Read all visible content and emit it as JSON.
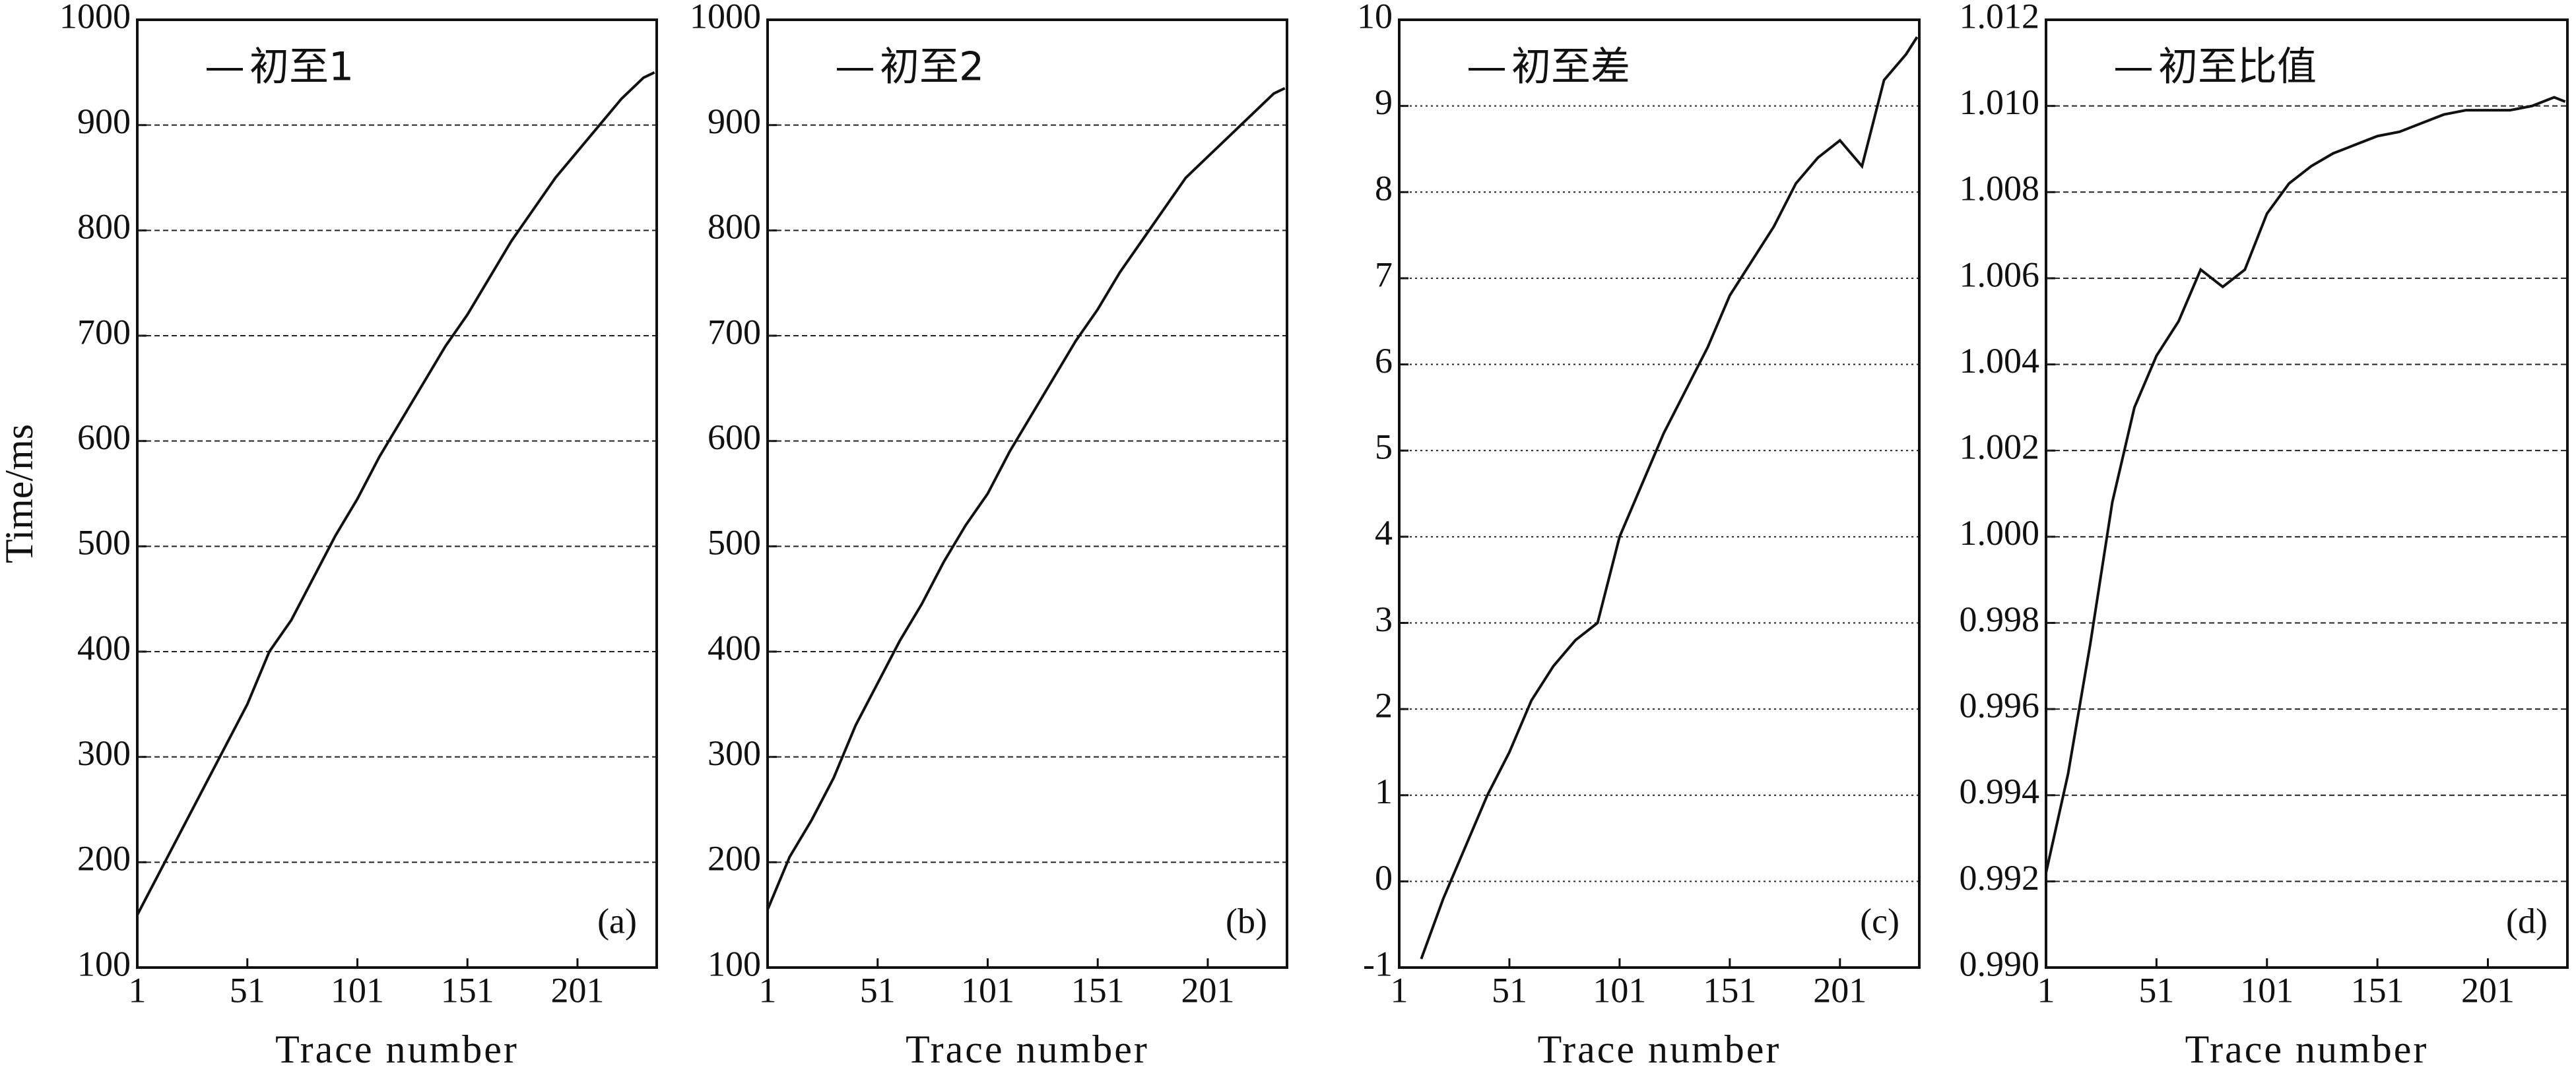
{
  "chart_data": [
    {
      "type": "line",
      "annotation": "(a)",
      "xlabel": "Trace number",
      "ylabel": "Time/ms",
      "grid": true,
      "legend": "upper left",
      "xlim": [
        1,
        237
      ],
      "xticks": [
        1,
        51,
        101,
        151,
        201
      ],
      "ylim": [
        100,
        1000
      ],
      "yticks": [
        100,
        200,
        300,
        400,
        500,
        600,
        700,
        800,
        900,
        1000
      ],
      "x": [
        1,
        11,
        21,
        31,
        41,
        51,
        61,
        71,
        81,
        91,
        101,
        111,
        121,
        131,
        141,
        151,
        161,
        171,
        181,
        191,
        201,
        211,
        221,
        231,
        236
      ],
      "series": [
        {
          "name": "初至1",
          "color": "#111111",
          "values": [
            150,
            190,
            230,
            270,
            310,
            350,
            400,
            430,
            470,
            510,
            545,
            585,
            620,
            655,
            690,
            720,
            755,
            790,
            820,
            850,
            875,
            900,
            925,
            945,
            950
          ]
        }
      ]
    },
    {
      "type": "line",
      "annotation": "(b)",
      "xlabel": "Trace number",
      "grid": true,
      "legend": "upper left",
      "xlim": [
        1,
        237
      ],
      "xticks": [
        1,
        51,
        101,
        151,
        201
      ],
      "ylim": [
        100,
        1000
      ],
      "yticks": [
        100,
        200,
        300,
        400,
        500,
        600,
        700,
        800,
        900,
        1000
      ],
      "x": [
        1,
        11,
        21,
        31,
        41,
        51,
        61,
        71,
        81,
        91,
        101,
        111,
        121,
        131,
        141,
        151,
        161,
        171,
        181,
        191,
        201,
        211,
        221,
        231,
        236
      ],
      "series": [
        {
          "name": "初至2",
          "color": "#111111",
          "values": [
            155,
            205,
            240,
            280,
            330,
            370,
            410,
            445,
            485,
            520,
            550,
            590,
            625,
            660,
            695,
            725,
            760,
            790,
            820,
            850,
            870,
            890,
            910,
            930,
            935
          ]
        }
      ]
    },
    {
      "type": "line",
      "annotation": "(c)",
      "xlabel": "Trace number",
      "grid": true,
      "legend": "upper left",
      "xlim": [
        1,
        237
      ],
      "xticks": [
        1,
        51,
        101,
        151,
        201
      ],
      "ylim": [
        -1,
        10
      ],
      "yticks": [
        -1,
        0,
        1,
        2,
        3,
        4,
        5,
        6,
        7,
        8,
        9,
        10
      ],
      "x": [
        11,
        21,
        31,
        41,
        51,
        61,
        71,
        81,
        91,
        101,
        111,
        121,
        131,
        141,
        151,
        161,
        171,
        181,
        191,
        201,
        211,
        221,
        231,
        236
      ],
      "series": [
        {
          "name": "初至差",
          "color": "#111111",
          "values": [
            -0.9,
            -0.2,
            0.4,
            1.0,
            1.5,
            2.1,
            2.5,
            2.8,
            3.0,
            4.0,
            4.6,
            5.2,
            5.7,
            6.2,
            6.8,
            7.2,
            7.6,
            8.1,
            8.4,
            8.6,
            8.3,
            9.3,
            9.6,
            9.8
          ]
        }
      ]
    },
    {
      "type": "line",
      "annotation": "(d)",
      "xlabel": "Trace number",
      "grid": true,
      "legend": "upper left",
      "xlim": [
        1,
        237
      ],
      "xticks": [
        1,
        51,
        101,
        151,
        201
      ],
      "ylim": [
        0.99,
        1.012
      ],
      "yticks": [
        {
          "value": 0.99,
          "label": "0.990"
        },
        {
          "value": 0.992,
          "label": "0.992"
        },
        {
          "value": 0.994,
          "label": "0.994"
        },
        {
          "value": 0.996,
          "label": "0.996"
        },
        {
          "value": 0.998,
          "label": "0.998"
        },
        {
          "value": 1.0,
          "label": "1.000"
        },
        {
          "value": 1.002,
          "label": "1.002"
        },
        {
          "value": 1.004,
          "label": "1.004"
        },
        {
          "value": 1.006,
          "label": "1.006"
        },
        {
          "value": 1.008,
          "label": "1.008"
        },
        {
          "value": 1.01,
          "label": "1.010"
        },
        {
          "value": 1.012,
          "label": "1.012"
        }
      ],
      "x": [
        1,
        11,
        21,
        31,
        41,
        51,
        61,
        71,
        81,
        91,
        101,
        111,
        121,
        131,
        141,
        151,
        161,
        171,
        181,
        191,
        201,
        211,
        221,
        231,
        236
      ],
      "series": [
        {
          "name": "初至比值",
          "color": "#111111",
          "values": [
            0.9922,
            0.9945,
            0.9975,
            1.0008,
            1.003,
            1.0042,
            1.005,
            1.0062,
            1.0058,
            1.0062,
            1.0075,
            1.0082,
            1.0086,
            1.0089,
            1.0091,
            1.0093,
            1.0094,
            1.0096,
            1.0098,
            1.0099,
            1.0099,
            1.0099,
            1.01,
            1.0102,
            1.0101
          ]
        }
      ]
    }
  ]
}
